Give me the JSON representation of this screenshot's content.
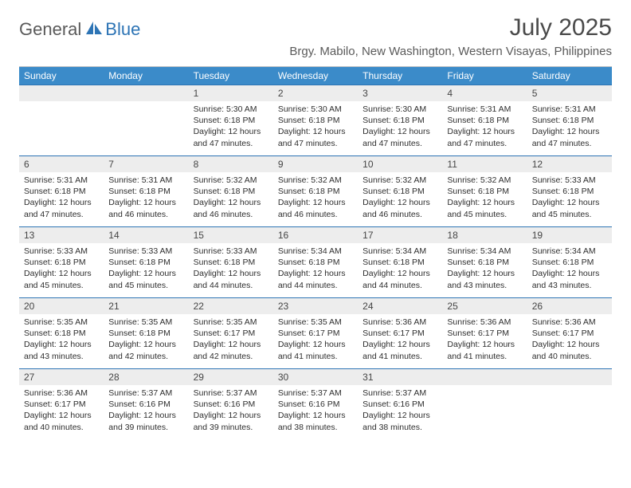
{
  "logo": {
    "general": "General",
    "blue": "Blue"
  },
  "title": "July 2025",
  "location": "Brgy. Mabilo, New Washington, Western Visayas, Philippines",
  "colors": {
    "header_bg": "#3b8bc9",
    "header_text": "#ffffff",
    "daynum_bg": "#ededed",
    "divider": "#2d74b5",
    "body_text": "#2e2e2e"
  },
  "days_of_week": [
    "Sunday",
    "Monday",
    "Tuesday",
    "Wednesday",
    "Thursday",
    "Friday",
    "Saturday"
  ],
  "weeks": [
    [
      null,
      null,
      {
        "n": "1",
        "sr": "5:30 AM",
        "ss": "6:18 PM",
        "dl": "12 hours and 47 minutes."
      },
      {
        "n": "2",
        "sr": "5:30 AM",
        "ss": "6:18 PM",
        "dl": "12 hours and 47 minutes."
      },
      {
        "n": "3",
        "sr": "5:30 AM",
        "ss": "6:18 PM",
        "dl": "12 hours and 47 minutes."
      },
      {
        "n": "4",
        "sr": "5:31 AM",
        "ss": "6:18 PM",
        "dl": "12 hours and 47 minutes."
      },
      {
        "n": "5",
        "sr": "5:31 AM",
        "ss": "6:18 PM",
        "dl": "12 hours and 47 minutes."
      }
    ],
    [
      {
        "n": "6",
        "sr": "5:31 AM",
        "ss": "6:18 PM",
        "dl": "12 hours and 47 minutes."
      },
      {
        "n": "7",
        "sr": "5:31 AM",
        "ss": "6:18 PM",
        "dl": "12 hours and 46 minutes."
      },
      {
        "n": "8",
        "sr": "5:32 AM",
        "ss": "6:18 PM",
        "dl": "12 hours and 46 minutes."
      },
      {
        "n": "9",
        "sr": "5:32 AM",
        "ss": "6:18 PM",
        "dl": "12 hours and 46 minutes."
      },
      {
        "n": "10",
        "sr": "5:32 AM",
        "ss": "6:18 PM",
        "dl": "12 hours and 46 minutes."
      },
      {
        "n": "11",
        "sr": "5:32 AM",
        "ss": "6:18 PM",
        "dl": "12 hours and 45 minutes."
      },
      {
        "n": "12",
        "sr": "5:33 AM",
        "ss": "6:18 PM",
        "dl": "12 hours and 45 minutes."
      }
    ],
    [
      {
        "n": "13",
        "sr": "5:33 AM",
        "ss": "6:18 PM",
        "dl": "12 hours and 45 minutes."
      },
      {
        "n": "14",
        "sr": "5:33 AM",
        "ss": "6:18 PM",
        "dl": "12 hours and 45 minutes."
      },
      {
        "n": "15",
        "sr": "5:33 AM",
        "ss": "6:18 PM",
        "dl": "12 hours and 44 minutes."
      },
      {
        "n": "16",
        "sr": "5:34 AM",
        "ss": "6:18 PM",
        "dl": "12 hours and 44 minutes."
      },
      {
        "n": "17",
        "sr": "5:34 AM",
        "ss": "6:18 PM",
        "dl": "12 hours and 44 minutes."
      },
      {
        "n": "18",
        "sr": "5:34 AM",
        "ss": "6:18 PM",
        "dl": "12 hours and 43 minutes."
      },
      {
        "n": "19",
        "sr": "5:34 AM",
        "ss": "6:18 PM",
        "dl": "12 hours and 43 minutes."
      }
    ],
    [
      {
        "n": "20",
        "sr": "5:35 AM",
        "ss": "6:18 PM",
        "dl": "12 hours and 43 minutes."
      },
      {
        "n": "21",
        "sr": "5:35 AM",
        "ss": "6:18 PM",
        "dl": "12 hours and 42 minutes."
      },
      {
        "n": "22",
        "sr": "5:35 AM",
        "ss": "6:17 PM",
        "dl": "12 hours and 42 minutes."
      },
      {
        "n": "23",
        "sr": "5:35 AM",
        "ss": "6:17 PM",
        "dl": "12 hours and 41 minutes."
      },
      {
        "n": "24",
        "sr": "5:36 AM",
        "ss": "6:17 PM",
        "dl": "12 hours and 41 minutes."
      },
      {
        "n": "25",
        "sr": "5:36 AM",
        "ss": "6:17 PM",
        "dl": "12 hours and 41 minutes."
      },
      {
        "n": "26",
        "sr": "5:36 AM",
        "ss": "6:17 PM",
        "dl": "12 hours and 40 minutes."
      }
    ],
    [
      {
        "n": "27",
        "sr": "5:36 AM",
        "ss": "6:17 PM",
        "dl": "12 hours and 40 minutes."
      },
      {
        "n": "28",
        "sr": "5:37 AM",
        "ss": "6:16 PM",
        "dl": "12 hours and 39 minutes."
      },
      {
        "n": "29",
        "sr": "5:37 AM",
        "ss": "6:16 PM",
        "dl": "12 hours and 39 minutes."
      },
      {
        "n": "30",
        "sr": "5:37 AM",
        "ss": "6:16 PM",
        "dl": "12 hours and 38 minutes."
      },
      {
        "n": "31",
        "sr": "5:37 AM",
        "ss": "6:16 PM",
        "dl": "12 hours and 38 minutes."
      },
      null,
      null
    ]
  ],
  "labels": {
    "sunrise": "Sunrise: ",
    "sunset": "Sunset: ",
    "daylight": "Daylight: "
  }
}
